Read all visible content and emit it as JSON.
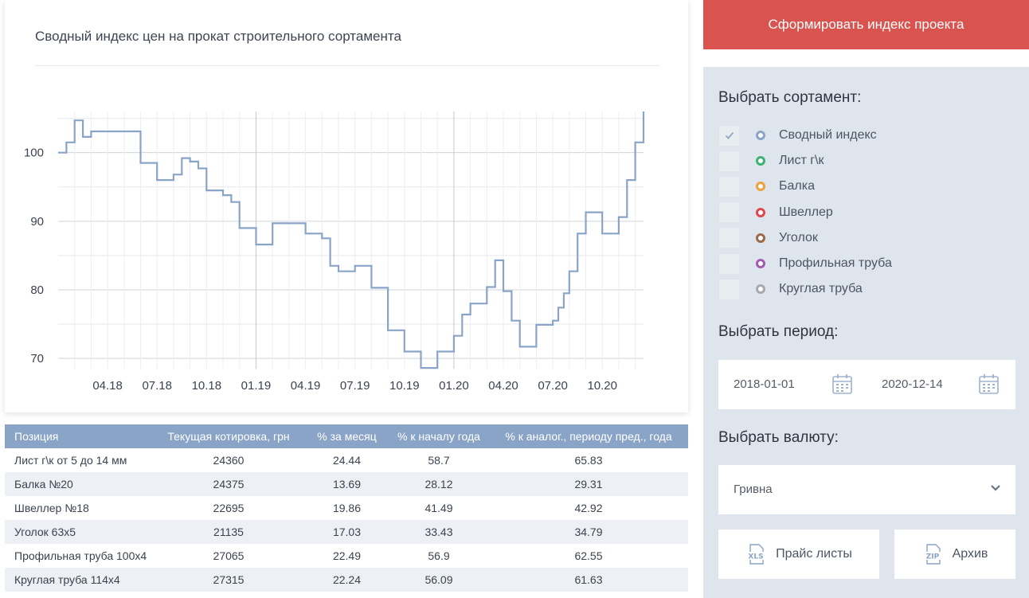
{
  "chart": {
    "title": "Сводный индекс цен на прокат строительного сортамента",
    "color": "#8aa4c8",
    "y_ticks": [
      "100",
      "90",
      "80",
      "70"
    ],
    "x_ticks": [
      "04.18",
      "07.18",
      "10.18",
      "01.19",
      "04.19",
      "07.19",
      "10.19",
      "01.20",
      "04.20",
      "07.20",
      "10.20"
    ]
  },
  "chart_data": {
    "type": "line",
    "title": "Сводный индекс цен на прокат строительного сортамента",
    "xlabel": "",
    "ylabel": "",
    "ylim": [
      68.5,
      106
    ],
    "x_range": [
      "2018-01",
      "2020-12"
    ],
    "grid": true,
    "series": [
      {
        "style": "step",
        "points": [
          [
            "2018-01",
            100.0
          ],
          [
            "2018-01",
            101.5
          ],
          [
            "2018-02",
            104.7
          ],
          [
            "2018-02",
            102.3
          ],
          [
            "2018-03",
            103.1
          ],
          [
            "2018-06",
            98.5
          ],
          [
            "2018-07",
            96.0
          ],
          [
            "2018-08",
            96.8
          ],
          [
            "2018-08",
            99.2
          ],
          [
            "2018-09",
            98.7
          ],
          [
            "2018-09",
            97.7
          ],
          [
            "2018-10",
            94.5
          ],
          [
            "2018-11",
            93.8
          ],
          [
            "2018-11",
            92.8
          ],
          [
            "2018-12",
            89.0
          ],
          [
            "2019-01",
            86.6
          ],
          [
            "2019-02",
            89.7
          ],
          [
            "2019-04",
            88.2
          ],
          [
            "2019-05",
            87.5
          ],
          [
            "2019-05",
            83.5
          ],
          [
            "2019-06",
            82.7
          ],
          [
            "2019-07",
            83.5
          ],
          [
            "2019-08",
            80.3
          ],
          [
            "2019-09",
            74.1
          ],
          [
            "2019-10",
            71.0
          ],
          [
            "2019-11",
            68.6
          ],
          [
            "2019-12",
            71.0
          ],
          [
            "2020-01",
            73.3
          ],
          [
            "2020-01",
            76.4
          ],
          [
            "2020-02",
            78.0
          ],
          [
            "2020-03",
            80.4
          ],
          [
            "2020-03",
            84.3
          ],
          [
            "2020-04",
            79.8
          ],
          [
            "2020-04",
            75.5
          ],
          [
            "2020-05",
            71.7
          ],
          [
            "2020-06",
            74.9
          ],
          [
            "2020-07",
            75.5
          ],
          [
            "2020-07",
            77.4
          ],
          [
            "2020-07",
            79.5
          ],
          [
            "2020-08",
            82.7
          ],
          [
            "2020-08",
            88.2
          ],
          [
            "2020-09",
            91.3
          ],
          [
            "2020-10",
            88.2
          ],
          [
            "2020-11",
            90.6
          ],
          [
            "2020-11",
            96.0
          ],
          [
            "2020-12",
            101.5
          ],
          [
            "2020-12",
            106.0
          ]
        ]
      }
    ]
  },
  "table": {
    "headers": [
      "Позиция",
      "Текущая котировка, грн",
      "% за месяц",
      "% к началу года",
      "% к аналог., периоду пред., года"
    ],
    "rows": [
      [
        "Лист г\\к от 5 до 14 мм",
        "24360",
        "24.44",
        "58.7",
        "65.83"
      ],
      [
        "Балка №20",
        "24375",
        "13.69",
        "28.12",
        "29.31"
      ],
      [
        "Швеллер №18",
        "22695",
        "19.86",
        "41.49",
        "42.92"
      ],
      [
        "Уголок 63х5",
        "21135",
        "17.03",
        "33.43",
        "34.79"
      ],
      [
        "Профильная труба 100х4",
        "27065",
        "22.49",
        "56.9",
        "62.55"
      ],
      [
        "Круглая труба 114х4",
        "27315",
        "22.24",
        "56.09",
        "61.63"
      ]
    ]
  },
  "sidebar": {
    "form_button": "Сформировать индекс проекта",
    "sortament_title": "Выбрать сортамент:",
    "sortament": [
      {
        "label": "Сводный индекс",
        "checked": true,
        "color": "#8aa4c8"
      },
      {
        "label": "Лист г\\к",
        "checked": false,
        "color": "#3cb371"
      },
      {
        "label": "Балка",
        "checked": false,
        "color": "#f0a03c"
      },
      {
        "label": "Швеллер",
        "checked": false,
        "color": "#e0474c"
      },
      {
        "label": "Уголок",
        "checked": false,
        "color": "#9a6a4a"
      },
      {
        "label": "Профильная труба",
        "checked": false,
        "color": "#a25bb0"
      },
      {
        "label": "Круглая труба",
        "checked": false,
        "color": "#a7a9ad"
      }
    ],
    "period_title": "Выбрать период:",
    "date_from": "2018-01-01",
    "date_to": "2020-12-14",
    "currency_title": "Выбрать валюту:",
    "currency": "Гривна",
    "price_button": "Прайс листы",
    "price_icon_text": "XLS",
    "archive_button": "Архив",
    "archive_icon_text": "ZIP"
  }
}
